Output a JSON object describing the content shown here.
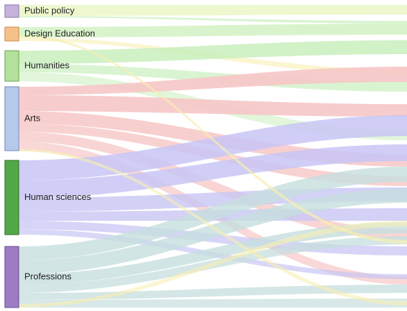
{
  "chart_data": {
    "type": "sankey",
    "nodes": [
      {
        "id": "public_policy",
        "label": "Public policy",
        "color": "#c5b3dd",
        "border": "#8a79a8"
      },
      {
        "id": "design_education",
        "label": "Design Education",
        "color": "#f6c08a",
        "border": "#c98b4b"
      },
      {
        "id": "humanities",
        "label": "Humanities",
        "color": "#b3e09a",
        "border": "#6ea655"
      },
      {
        "id": "arts",
        "label": "Arts",
        "color": "#b7c9ea",
        "border": "#6f86b8"
      },
      {
        "id": "human_sciences",
        "label": "Human sciences",
        "color": "#52a846",
        "border": "#2f6f27"
      },
      {
        "id": "professions",
        "label": "Professions",
        "color": "#9d7cc4",
        "border": "#6a4d8f"
      }
    ]
  },
  "colors": {
    "public_policy_flow": "#ecf7c9",
    "design_education_flow": "#d5f3c6",
    "humanities_flow": "#c9efbd",
    "arts_flow": "#f6c7c6",
    "human_sciences_flow": "#c8c6f4",
    "professions_flow": "#c7dede",
    "yellow_flow": "#f8eeb2"
  }
}
